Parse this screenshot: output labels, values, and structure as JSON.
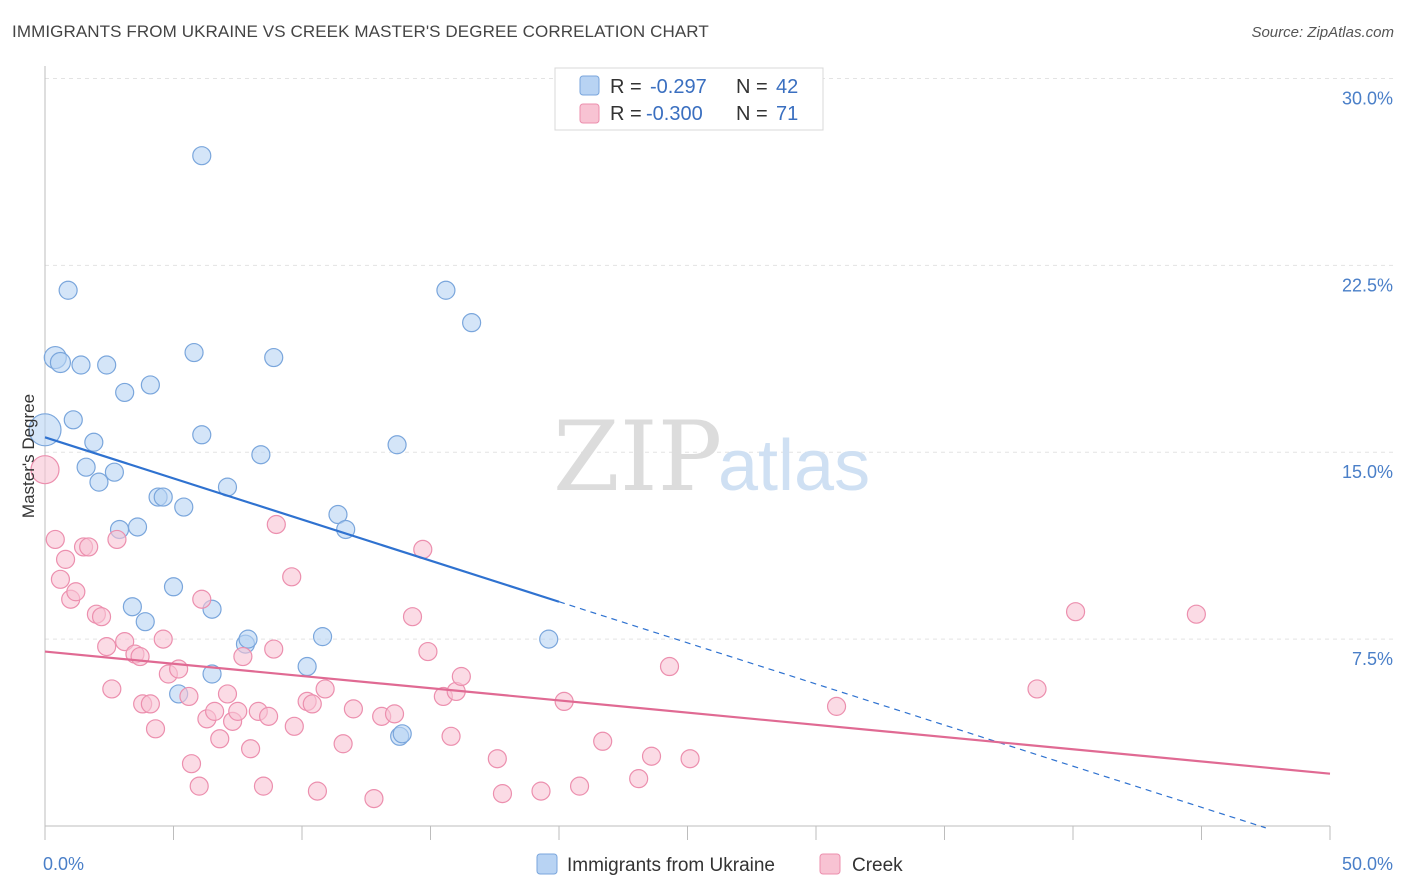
{
  "title": "IMMIGRANTS FROM UKRAINE VS CREEK MASTER'S DEGREE CORRELATION CHART",
  "source": "Source: ZipAtlas.com",
  "watermark": {
    "zip": "ZIP",
    "atlas": "atlas"
  },
  "colors": {
    "blue_fill": "#b8d3f3",
    "blue_stroke": "#7aa6dc",
    "blue_line": "#2f72d0",
    "pink_fill": "#f8c3d3",
    "pink_stroke": "#ec8fae",
    "pink_line": "#e06a93",
    "grid": "#e3e3e3",
    "tick_text": "#4a7fc8"
  },
  "legend": {
    "series": [
      {
        "r_label": "R =",
        "r_value": "-0.297",
        "n_label": "N =",
        "n_value": "42"
      },
      {
        "r_label": "R =",
        "r_value": "-0.300",
        "n_label": "N =",
        "n_value": "71"
      }
    ]
  },
  "chart_data": {
    "type": "scatter",
    "title": "IMMIGRANTS FROM UKRAINE VS CREEK MASTER'S DEGREE CORRELATION CHART",
    "xlabel": "",
    "ylabel": "Master's Degree",
    "xlim": [
      0,
      50
    ],
    "ylim": [
      0,
      30.5
    ],
    "x_tick_labels": [
      "0.0%",
      "50.0%"
    ],
    "y_ticks": [
      7.5,
      15.0,
      22.5,
      30.0
    ],
    "y_tick_labels": [
      "7.5%",
      "15.0%",
      "22.5%",
      "30.0%"
    ],
    "series": [
      {
        "name": "Immigrants from Ukraine",
        "color": "blue",
        "trend": {
          "x0": 0,
          "y0": 15.6,
          "x1": 20,
          "y1": 9.0,
          "dash_to_x": 47.5
        },
        "points": [
          [
            0.0,
            15.9,
            16
          ],
          [
            0.4,
            18.8,
            11
          ],
          [
            0.6,
            18.6,
            10
          ],
          [
            0.9,
            21.5,
            9
          ],
          [
            1.1,
            16.3,
            9
          ],
          [
            1.4,
            18.5,
            9
          ],
          [
            1.6,
            14.4,
            9
          ],
          [
            1.9,
            15.4,
            9
          ],
          [
            2.1,
            13.8,
            9
          ],
          [
            2.4,
            18.5,
            9
          ],
          [
            2.7,
            14.2,
            9
          ],
          [
            2.9,
            11.9,
            9
          ],
          [
            3.1,
            17.4,
            9
          ],
          [
            3.4,
            8.8,
            9
          ],
          [
            3.6,
            12.0,
            9
          ],
          [
            3.9,
            8.2,
            9
          ],
          [
            4.1,
            17.7,
            9
          ],
          [
            4.4,
            13.2,
            9
          ],
          [
            4.6,
            13.2,
            9
          ],
          [
            5.0,
            9.6,
            9
          ],
          [
            5.2,
            5.3,
            9
          ],
          [
            5.4,
            12.8,
            9
          ],
          [
            5.8,
            19.0,
            9
          ],
          [
            6.1,
            26.9,
            9
          ],
          [
            6.1,
            15.7,
            9
          ],
          [
            6.5,
            8.7,
            9
          ],
          [
            6.5,
            6.1,
            9
          ],
          [
            7.1,
            13.6,
            9
          ],
          [
            7.8,
            7.3,
            9
          ],
          [
            7.9,
            7.5,
            9
          ],
          [
            8.4,
            14.9,
            9
          ],
          [
            8.9,
            18.8,
            9
          ],
          [
            10.2,
            6.4,
            9
          ],
          [
            10.8,
            7.6,
            9
          ],
          [
            11.4,
            12.5,
            9
          ],
          [
            11.7,
            11.9,
            9
          ],
          [
            13.8,
            3.6,
            9
          ],
          [
            13.9,
            3.7,
            9
          ],
          [
            13.7,
            15.3,
            9
          ],
          [
            15.6,
            21.5,
            9
          ],
          [
            16.6,
            20.2,
            9
          ],
          [
            19.6,
            7.5,
            9
          ]
        ]
      },
      {
        "name": "Creek",
        "color": "pink",
        "trend": {
          "x0": 0,
          "y0": 7.0,
          "x1": 50,
          "y1": 2.1
        },
        "points": [
          [
            0.0,
            14.3,
            14
          ],
          [
            0.4,
            11.5,
            9
          ],
          [
            0.6,
            9.9,
            9
          ],
          [
            0.8,
            10.7,
            9
          ],
          [
            1.0,
            9.1,
            9
          ],
          [
            1.2,
            9.4,
            9
          ],
          [
            1.5,
            11.2,
            9
          ],
          [
            1.7,
            11.2,
            9
          ],
          [
            2.0,
            8.5,
            9
          ],
          [
            2.2,
            8.4,
            9
          ],
          [
            2.4,
            7.2,
            9
          ],
          [
            2.6,
            5.5,
            9
          ],
          [
            2.8,
            11.5,
            9
          ],
          [
            3.1,
            7.4,
            9
          ],
          [
            3.5,
            6.9,
            9
          ],
          [
            3.7,
            6.8,
            9
          ],
          [
            3.8,
            4.9,
            9
          ],
          [
            4.1,
            4.9,
            9
          ],
          [
            4.3,
            3.9,
            9
          ],
          [
            4.6,
            7.5,
            9
          ],
          [
            4.8,
            6.1,
            9
          ],
          [
            5.2,
            6.3,
            9
          ],
          [
            5.6,
            5.2,
            9
          ],
          [
            5.7,
            2.5,
            9
          ],
          [
            6.0,
            1.6,
            9
          ],
          [
            6.1,
            9.1,
            9
          ],
          [
            6.3,
            4.3,
            9
          ],
          [
            6.6,
            4.6,
            9
          ],
          [
            6.8,
            3.5,
            9
          ],
          [
            7.1,
            5.3,
            9
          ],
          [
            7.3,
            4.2,
            9
          ],
          [
            7.5,
            4.6,
            9
          ],
          [
            7.7,
            6.8,
            9
          ],
          [
            8.0,
            3.1,
            9
          ],
          [
            8.3,
            4.6,
            9
          ],
          [
            8.5,
            1.6,
            9
          ],
          [
            8.7,
            4.4,
            9
          ],
          [
            8.9,
            7.1,
            9
          ],
          [
            9.0,
            12.1,
            9
          ],
          [
            9.6,
            10.0,
            9
          ],
          [
            9.7,
            4.0,
            9
          ],
          [
            10.2,
            5.0,
            9
          ],
          [
            10.4,
            4.9,
            9
          ],
          [
            10.6,
            1.4,
            9
          ],
          [
            10.9,
            5.5,
            9
          ],
          [
            11.6,
            3.3,
            9
          ],
          [
            12.0,
            4.7,
            9
          ],
          [
            12.8,
            1.1,
            9
          ],
          [
            13.1,
            4.4,
            9
          ],
          [
            13.6,
            4.5,
            9
          ],
          [
            14.3,
            8.4,
            9
          ],
          [
            14.7,
            11.1,
            9
          ],
          [
            14.9,
            7.0,
            9
          ],
          [
            15.5,
            5.2,
            9
          ],
          [
            15.8,
            3.6,
            9
          ],
          [
            16.0,
            5.4,
            9
          ],
          [
            16.2,
            6.0,
            9
          ],
          [
            17.6,
            2.7,
            9
          ],
          [
            17.8,
            1.3,
            9
          ],
          [
            19.3,
            1.4,
            9
          ],
          [
            20.2,
            5.0,
            9
          ],
          [
            20.8,
            1.6,
            9
          ],
          [
            21.7,
            3.4,
            9
          ],
          [
            23.1,
            1.9,
            9
          ],
          [
            23.6,
            2.8,
            9
          ],
          [
            24.3,
            6.4,
            9
          ],
          [
            25.1,
            2.7,
            9
          ],
          [
            30.8,
            4.8,
            9
          ],
          [
            38.6,
            5.5,
            9
          ],
          [
            40.1,
            8.6,
            9
          ],
          [
            44.8,
            8.5,
            9
          ]
        ]
      }
    ],
    "grid": true,
    "legend_position": "top-center"
  }
}
